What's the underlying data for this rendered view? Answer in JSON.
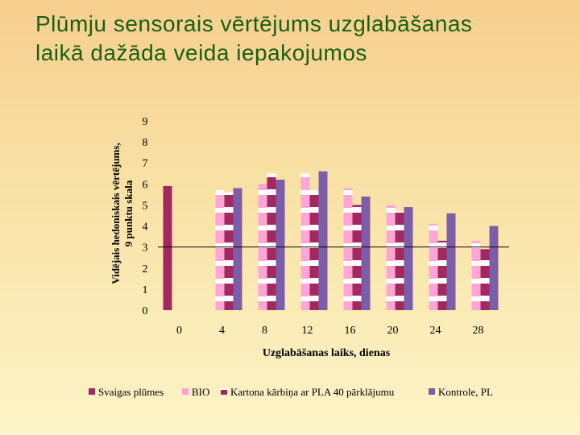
{
  "slide": {
    "title": "Plūmju sensorais vērtējums uzglabāšanas laikā dažāda veida iepakojumos"
  },
  "chart_data": {
    "type": "bar",
    "title": "",
    "ylabel_line1": "Vidējais hedoniskais vērtējums,",
    "ylabel_line2": "9 punktu skala",
    "xlabel": "Uzglabāšanas laiks, dienas",
    "ylim": [
      0,
      9
    ],
    "yticks": [
      "0",
      "1",
      "2",
      "3",
      "4",
      "5",
      "6",
      "7",
      "8",
      "9"
    ],
    "categories": [
      "0",
      "4",
      "8",
      "12",
      "16",
      "20",
      "24",
      "28"
    ],
    "reference_line": 3,
    "series": [
      {
        "name": "Svaigas plūmes",
        "color": "#a3285f",
        "values": [
          5.9,
          null,
          null,
          null,
          null,
          null,
          null,
          null
        ]
      },
      {
        "name": "BIO",
        "color": "#ff9fd2",
        "values": [
          null,
          5.7,
          6.0,
          6.5,
          5.8,
          5.0,
          4.1,
          3.3
        ]
      },
      {
        "name": "Kartona kārbiņa ar PLA 40 pārklājumu",
        "color": "#a3285f",
        "values": [
          null,
          5.6,
          6.5,
          5.7,
          5.0,
          4.7,
          3.3,
          2.9
        ]
      },
      {
        "name": "Kontrole, PL",
        "color": "#7b5ea7",
        "values": [
          null,
          5.8,
          6.2,
          6.6,
          5.4,
          4.9,
          4.6,
          4.0
        ]
      }
    ]
  }
}
